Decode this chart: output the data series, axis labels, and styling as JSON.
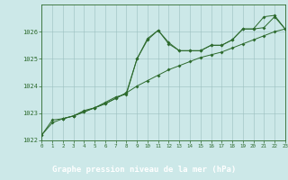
{
  "title": "Graphe pression niveau de la mer (hPa)",
  "bg_color": "#cce8e8",
  "label_bg_color": "#336633",
  "plot_bg_color": "#cce8e8",
  "grid_color": "#b0cccc",
  "line_color": "#2d6a2d",
  "xlim": [
    0,
    23
  ],
  "ylim": [
    1022,
    1027
  ],
  "xtick_labels": [
    "0",
    "1",
    "2",
    "3",
    "4",
    "5",
    "6",
    "7",
    "8",
    "9",
    "10",
    "11",
    "12",
    "13",
    "14",
    "15",
    "16",
    "17",
    "18",
    "19",
    "20",
    "21",
    "22",
    "23"
  ],
  "ytick_labels": [
    "1022",
    "1023",
    "1024",
    "1025",
    "1026"
  ],
  "ytick_vals": [
    1022,
    1023,
    1024,
    1025,
    1026
  ],
  "series1_x": [
    0,
    1,
    2,
    3,
    4,
    5,
    6,
    7,
    8,
    9,
    10,
    11,
    12,
    13,
    14,
    15,
    16,
    17,
    18,
    19,
    20,
    21,
    22,
    23
  ],
  "series1_y": [
    1022.2,
    1022.75,
    1022.8,
    1022.9,
    1023.05,
    1023.2,
    1023.4,
    1023.6,
    1023.7,
    1025.0,
    1025.7,
    1026.05,
    1025.6,
    1025.3,
    1025.3,
    1025.3,
    1025.5,
    1025.5,
    1025.7,
    1026.1,
    1026.1,
    1026.15,
    1026.55,
    1026.1
  ],
  "series2_x": [
    0,
    1,
    2,
    3,
    4,
    5,
    6,
    7,
    8,
    9,
    10,
    11,
    12,
    13,
    14,
    15,
    16,
    17,
    18,
    19,
    20,
    21,
    22,
    23
  ],
  "series2_y": [
    1022.2,
    1022.65,
    1022.8,
    1022.9,
    1023.1,
    1023.2,
    1023.35,
    1023.55,
    1023.75,
    1024.0,
    1024.2,
    1024.4,
    1024.6,
    1024.75,
    1024.9,
    1025.05,
    1025.15,
    1025.25,
    1025.4,
    1025.55,
    1025.7,
    1025.85,
    1026.0,
    1026.1
  ],
  "series3_x": [
    2,
    3,
    4,
    5,
    6,
    7,
    8,
    9,
    10,
    11,
    12,
    13,
    14,
    15,
    16,
    17,
    18,
    19,
    20,
    21,
    22,
    23
  ],
  "series3_y": [
    1022.8,
    1022.9,
    1023.05,
    1023.2,
    1023.35,
    1023.55,
    1023.75,
    1025.0,
    1025.75,
    1026.05,
    1025.55,
    1025.3,
    1025.3,
    1025.3,
    1025.5,
    1025.5,
    1025.7,
    1026.1,
    1026.1,
    1026.55,
    1026.6,
    1026.1
  ]
}
